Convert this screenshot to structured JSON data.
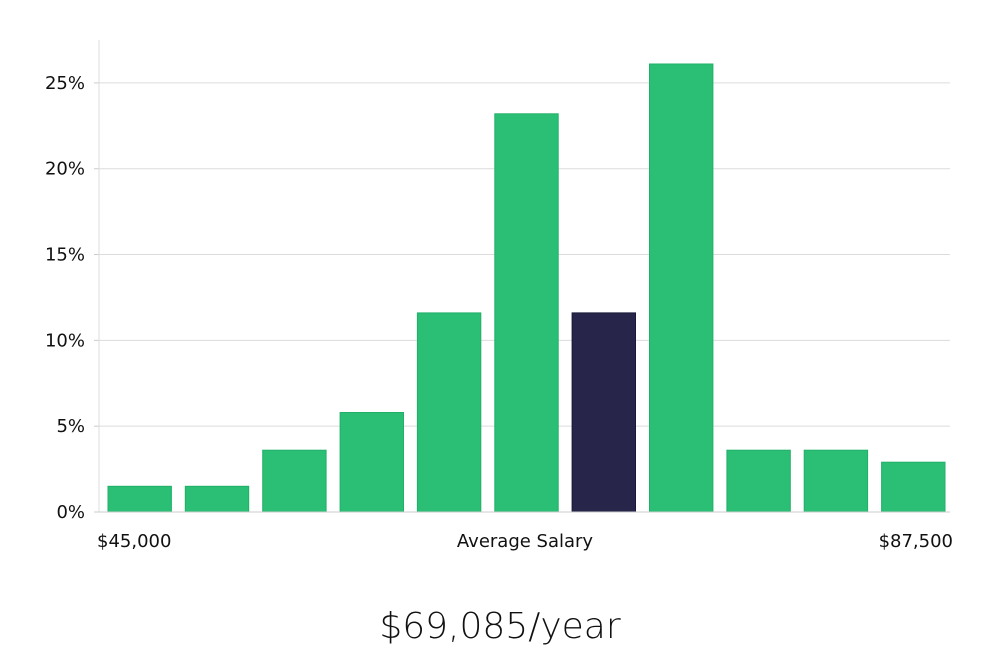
{
  "chart_data": {
    "type": "bar",
    "categories": [
      "1",
      "2",
      "3",
      "4",
      "5",
      "6",
      "7",
      "8",
      "9",
      "10",
      "11"
    ],
    "values": [
      1.5,
      1.5,
      3.6,
      5.8,
      11.6,
      23.2,
      11.6,
      26.1,
      3.6,
      3.6,
      2.9
    ],
    "highlight_index": 6,
    "bar_color": "#2abf75",
    "highlight_color": "#28254a",
    "xlabel": "Average Salary",
    "x_start_label": "$45,000",
    "x_end_label": "$87,500",
    "ylim": [
      0,
      27.5
    ],
    "yticks": [
      0,
      5,
      10,
      15,
      20,
      25
    ],
    "ytick_labels": [
      "0%",
      "5%",
      "10%",
      "15%",
      "20%",
      "25%"
    ],
    "grid": true
  },
  "summary": {
    "salary_text": "$69,085/year"
  }
}
